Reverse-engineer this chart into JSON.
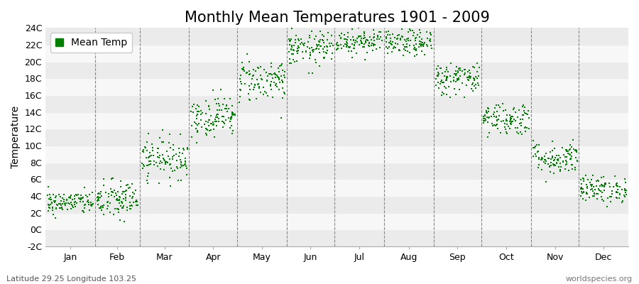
{
  "title": "Monthly Mean Temperatures 1901 - 2009",
  "ylabel": "Temperature",
  "xlabel_bottom_left": "Latitude 29.25 Longitude 103.25",
  "xlabel_bottom_right": "worldspecies.org",
  "legend_label": "Mean Temp",
  "ylim": [
    -2,
    24
  ],
  "yticks": [
    -2,
    0,
    2,
    4,
    6,
    8,
    10,
    12,
    14,
    16,
    18,
    20,
    22,
    24
  ],
  "ytick_labels": [
    "-2C",
    "0C",
    "2C",
    "4C",
    "6C",
    "8C",
    "10C",
    "12C",
    "14C",
    "16C",
    "18C",
    "20C",
    "22C",
    "24C"
  ],
  "months": [
    "Jan",
    "Feb",
    "Mar",
    "Apr",
    "May",
    "Jun",
    "Jul",
    "Aug",
    "Sep",
    "Oct",
    "Nov",
    "Dec"
  ],
  "dot_color": "#008000",
  "background_color": "#ffffff",
  "band_color_light": "#ebebeb",
  "band_color_dark": "#f7f7f7",
  "title_fontsize": 15,
  "axis_label_fontsize": 10,
  "tick_fontsize": 9,
  "monthly_means": [
    3.2,
    3.5,
    8.5,
    13.5,
    17.8,
    21.5,
    22.5,
    22.2,
    18.0,
    13.2,
    8.5,
    4.8
  ],
  "monthly_stds": [
    0.7,
    1.2,
    1.2,
    1.2,
    1.3,
    1.0,
    0.8,
    0.8,
    1.0,
    1.0,
    1.0,
    0.8
  ],
  "n_years": 109,
  "seed": 42,
  "days_in_month": [
    31,
    28,
    31,
    30,
    31,
    30,
    31,
    31,
    30,
    31,
    30,
    31
  ]
}
